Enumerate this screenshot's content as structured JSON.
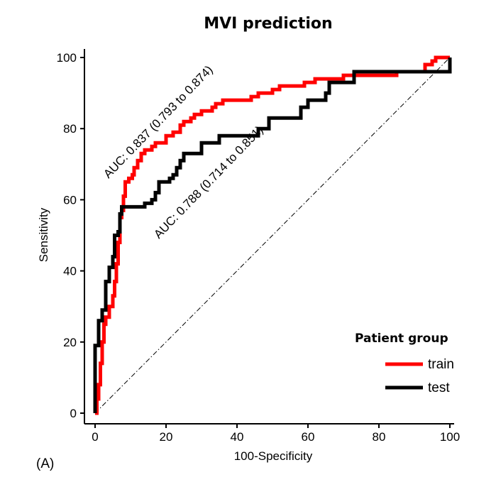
{
  "chart_data": {
    "type": "line",
    "title": "MVI prediction",
    "xlabel": "100-Specificity",
    "ylabel": "Sensitivity",
    "xlim": [
      0,
      100
    ],
    "ylim": [
      0,
      100
    ],
    "xticks": [
      0,
      20,
      40,
      60,
      80,
      100
    ],
    "yticks": [
      0,
      20,
      40,
      60,
      80,
      100
    ],
    "panel_label": "(A)",
    "legend": {
      "title": "Patient group",
      "placement": "lower-right",
      "entries": [
        "train",
        "test"
      ]
    },
    "reference_line": {
      "style": "dash-dot",
      "color": "#000000",
      "points": [
        [
          0,
          0
        ],
        [
          100,
          100
        ]
      ]
    },
    "annotations": [
      {
        "text": "AUC: 0.837 (0.793 to 0.874)",
        "series": "train"
      },
      {
        "text": "AUC: 0.788 (0.714 to 0.851)",
        "series": "test"
      }
    ],
    "series": [
      {
        "name": "train",
        "color": "#ff0000",
        "points": [
          [
            0,
            0
          ],
          [
            0.5,
            0
          ],
          [
            0.5,
            4
          ],
          [
            1,
            4
          ],
          [
            1,
            8
          ],
          [
            1.5,
            8
          ],
          [
            1.5,
            14
          ],
          [
            2,
            14
          ],
          [
            2,
            20
          ],
          [
            2.5,
            20
          ],
          [
            2.5,
            25
          ],
          [
            3,
            25
          ],
          [
            3,
            27
          ],
          [
            4,
            27
          ],
          [
            4,
            30
          ],
          [
            5,
            30
          ],
          [
            5,
            33
          ],
          [
            5.5,
            33
          ],
          [
            5.5,
            37
          ],
          [
            6,
            37
          ],
          [
            6,
            42
          ],
          [
            6.5,
            42
          ],
          [
            6.5,
            48
          ],
          [
            7,
            48
          ],
          [
            7,
            55
          ],
          [
            7.5,
            55
          ],
          [
            7.5,
            57
          ],
          [
            8,
            57
          ],
          [
            8,
            61
          ],
          [
            8.5,
            61
          ],
          [
            8.5,
            65
          ],
          [
            9.5,
            65
          ],
          [
            9.5,
            66
          ],
          [
            10.5,
            66
          ],
          [
            10.5,
            67
          ],
          [
            11,
            67
          ],
          [
            11,
            69
          ],
          [
            12,
            69
          ],
          [
            12,
            71
          ],
          [
            13,
            71
          ],
          [
            13,
            73
          ],
          [
            14,
            73
          ],
          [
            14,
            74
          ],
          [
            16,
            74
          ],
          [
            16,
            75
          ],
          [
            17,
            75
          ],
          [
            17,
            76
          ],
          [
            20,
            76
          ],
          [
            20,
            78
          ],
          [
            22,
            78
          ],
          [
            22,
            79
          ],
          [
            24,
            79
          ],
          [
            24,
            81
          ],
          [
            25,
            81
          ],
          [
            25,
            82
          ],
          [
            27,
            82
          ],
          [
            27,
            83
          ],
          [
            28,
            83
          ],
          [
            28,
            84
          ],
          [
            30,
            84
          ],
          [
            30,
            85
          ],
          [
            33,
            85
          ],
          [
            33,
            86
          ],
          [
            34,
            86
          ],
          [
            34,
            87
          ],
          [
            36,
            87
          ],
          [
            36,
            88
          ],
          [
            44,
            88
          ],
          [
            44,
            89
          ],
          [
            46,
            89
          ],
          [
            46,
            90
          ],
          [
            50,
            90
          ],
          [
            50,
            91
          ],
          [
            52,
            91
          ],
          [
            52,
            92
          ],
          [
            59,
            92
          ],
          [
            59,
            93
          ],
          [
            62,
            93
          ],
          [
            62,
            94
          ],
          [
            70,
            94
          ],
          [
            70,
            95
          ],
          [
            85,
            95
          ],
          [
            85,
            96
          ],
          [
            93,
            96
          ],
          [
            93,
            98
          ],
          [
            95,
            98
          ],
          [
            95,
            99
          ],
          [
            96,
            99
          ],
          [
            96,
            100
          ],
          [
            100,
            100
          ]
        ]
      },
      {
        "name": "test",
        "color": "#000000",
        "points": [
          [
            0,
            0
          ],
          [
            0,
            19
          ],
          [
            1,
            19
          ],
          [
            1,
            26
          ],
          [
            2,
            26
          ],
          [
            2,
            29
          ],
          [
            3,
            29
          ],
          [
            3,
            37
          ],
          [
            4,
            37
          ],
          [
            4,
            41
          ],
          [
            5,
            41
          ],
          [
            5,
            44
          ],
          [
            5.5,
            44
          ],
          [
            5.5,
            50
          ],
          [
            6.5,
            50
          ],
          [
            6.5,
            51
          ],
          [
            7,
            51
          ],
          [
            7,
            56
          ],
          [
            7.5,
            56
          ],
          [
            7.5,
            58
          ],
          [
            14,
            58
          ],
          [
            14,
            59
          ],
          [
            16,
            59
          ],
          [
            16,
            60
          ],
          [
            17,
            60
          ],
          [
            17,
            62
          ],
          [
            18,
            62
          ],
          [
            18,
            65
          ],
          [
            21,
            65
          ],
          [
            21,
            66
          ],
          [
            22,
            66
          ],
          [
            22,
            67
          ],
          [
            23,
            67
          ],
          [
            23,
            69
          ],
          [
            24,
            69
          ],
          [
            24,
            71
          ],
          [
            25,
            71
          ],
          [
            25,
            73
          ],
          [
            30,
            73
          ],
          [
            30,
            76
          ],
          [
            35,
            76
          ],
          [
            35,
            78
          ],
          [
            46,
            78
          ],
          [
            46,
            80
          ],
          [
            49,
            80
          ],
          [
            49,
            83
          ],
          [
            58,
            83
          ],
          [
            58,
            86
          ],
          [
            60,
            86
          ],
          [
            60,
            88
          ],
          [
            65,
            88
          ],
          [
            65,
            90
          ],
          [
            66,
            90
          ],
          [
            66,
            93
          ],
          [
            73,
            93
          ],
          [
            73,
            96
          ],
          [
            100,
            96
          ],
          [
            100,
            100
          ]
        ]
      }
    ]
  }
}
